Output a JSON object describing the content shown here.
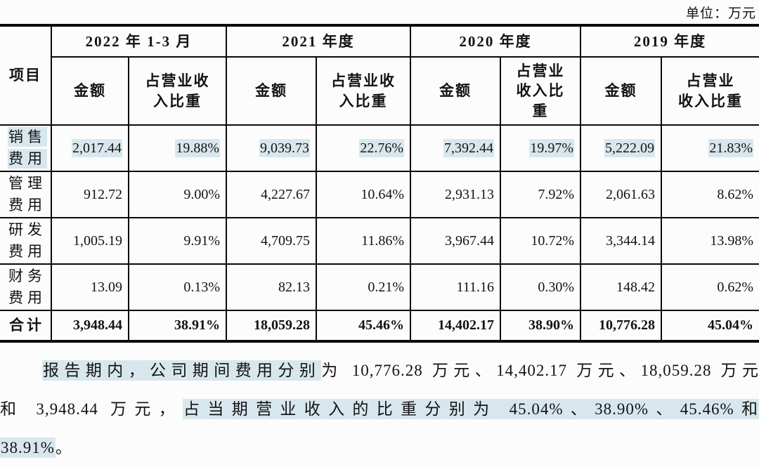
{
  "unit_label": "单位：万元",
  "colors": {
    "highlight": "#d8e7ee",
    "border": "#0a0a0a",
    "text": "#131313",
    "background": "#fcfcfc"
  },
  "table": {
    "item_header": "项目",
    "col_groups": [
      {
        "period": "2022 年 1-3 月",
        "amount_label": "金额",
        "ratio_label": "占营业收\n入比重"
      },
      {
        "period": "2021 年度",
        "amount_label": "金额",
        "ratio_label": "占营业收\n入比重"
      },
      {
        "period": "2020 年度",
        "amount_label": "金额",
        "ratio_label": "占营业\n收入比\n重"
      },
      {
        "period": "2019 年度",
        "amount_label": "金额",
        "ratio_label": "占营业\n收入比重"
      }
    ],
    "rows": [
      {
        "label": "销售\n费用",
        "highlight": true,
        "values": [
          "2,017.44",
          "19.88%",
          "9,039.73",
          "22.76%",
          "7,392.44",
          "19.97%",
          "5,222.09",
          "21.83%"
        ]
      },
      {
        "label": "管理\n费用",
        "highlight": false,
        "values": [
          "912.72",
          "9.00%",
          "4,227.67",
          "10.64%",
          "2,931.13",
          "7.92%",
          "2,061.63",
          "8.62%"
        ]
      },
      {
        "label": "研发\n费用",
        "highlight": false,
        "values": [
          "1,005.19",
          "9.91%",
          "4,709.75",
          "11.86%",
          "3,967.44",
          "10.72%",
          "3,344.14",
          "13.98%"
        ]
      },
      {
        "label": "财务\n费用",
        "highlight": false,
        "values": [
          "13.09",
          "0.13%",
          "82.13",
          "0.21%",
          "111.16",
          "0.30%",
          "148.42",
          "0.62%"
        ]
      }
    ],
    "total_row": {
      "label": "合计",
      "values": [
        "3,948.44",
        "38.91%",
        "18,059.28",
        "45.46%",
        "14,402.17",
        "38.90%",
        "10,776.28",
        "45.04%"
      ]
    }
  },
  "paragraph": {
    "lines": [
      [
        {
          "text": "报告期内，公司期间费用分别",
          "hl": true
        },
        {
          "text": "为 10,776.28 万元、14,402.17 万元、18,059.28 万元",
          "hl": false
        }
      ],
      [
        {
          "text": "和 3,948.44 万元，",
          "hl": false
        },
        {
          "text": "占当期营业收入的比重分别为 45.04%、38.90%、45.46%和",
          "hl": true
        }
      ],
      [
        {
          "text": "38.91%",
          "hl": true
        },
        {
          "text": "。",
          "hl": false
        }
      ]
    ]
  }
}
